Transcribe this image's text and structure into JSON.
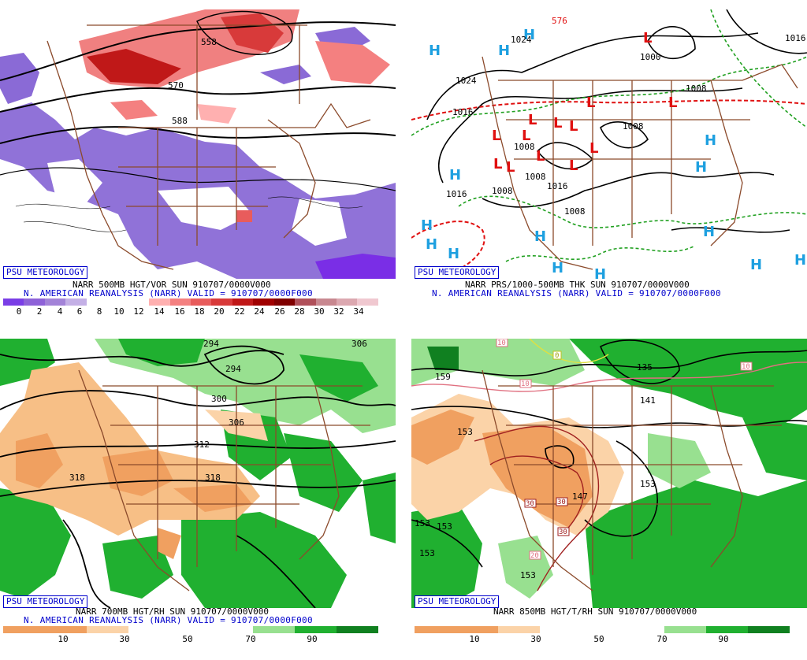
{
  "panels": {
    "p1": {
      "credit": "PSU METEOROLOGY",
      "caption_line1": "NARR 500MB HGT/VOR SUN 910707/0000V000",
      "caption_line2": "N. AMERICAN REANALYSIS (NARR) VALID = 910707/0000F000",
      "colorbar_ticks": [
        "0",
        "2",
        "4",
        "6",
        "8",
        "10",
        "12",
        "14",
        "16",
        "18",
        "20",
        "22",
        "24",
        "26",
        "28",
        "30",
        "32",
        "34"
      ],
      "colorbar_colors": [
        "#7a3ee6",
        "#8e62d8",
        "#a383d8",
        "#c4b0e6",
        "#ffffff",
        "#ffffff",
        "#ffffff",
        "#ffb0b0",
        "#f48080",
        "#e85c5c",
        "#d83a3a",
        "#c01818",
        "#a00000",
        "#800000",
        "#b0505a",
        "#c88890",
        "#dca8b0",
        "#f0c8d0"
      ],
      "contour_labels": [
        "558",
        "570",
        "588"
      ]
    },
    "p2": {
      "credit": "PSU METEOROLOGY",
      "caption_line1": "NARR PRS/1000-500MB THK SUN 910707/0000V000",
      "caption_line2": "N. AMERICAN REANALYSIS (NARR) VALID = 910707/0000F000",
      "contour_labels": [
        "1024",
        "1000",
        "1016",
        "1024",
        "1016",
        "1008",
        "1008",
        "1008",
        "1008",
        "1016",
        "1008",
        "1008",
        "1016",
        "576"
      ],
      "high_symbol": "H",
      "low_symbol": "L"
    },
    "p3": {
      "credit": "PSU METEOROLOGY",
      "caption_line1": "NARR 700MB HGT/RH SUN 910707/0000V000",
      "caption_line2": "N. AMERICAN REANALYSIS (NARR) VALID = 910707/0000F000",
      "colorbar_ticks": [
        "10",
        "30",
        "50",
        "70",
        "90"
      ],
      "colorbar_colors": [
        "#f0a060",
        "#fbd3a8",
        "#ffffff",
        "#ffffff",
        "#98e090",
        "#20b030",
        "#108020"
      ],
      "contour_labels": [
        "294",
        "294",
        "300",
        "306",
        "312",
        "318",
        "318",
        "306"
      ]
    },
    "p4": {
      "credit": "PSU METEOROLOGY",
      "caption_line1": "NARR 850MB HGT/T/RH SUN 910707/0000V000",
      "colorbar_ticks": [
        "10",
        "30",
        "50",
        "70",
        "90"
      ],
      "colorbar_colors": [
        "#f0a060",
        "#fbd3a8",
        "#ffffff",
        "#ffffff",
        "#98e090",
        "#20b030",
        "#108020"
      ],
      "contour_labels": [
        "159",
        "153",
        "135",
        "141",
        "153",
        "153",
        "153",
        "153",
        "153",
        "147"
      ],
      "temp_labels": [
        "10",
        "10",
        "10",
        "0",
        "30",
        "30",
        "30",
        "20"
      ]
    }
  }
}
